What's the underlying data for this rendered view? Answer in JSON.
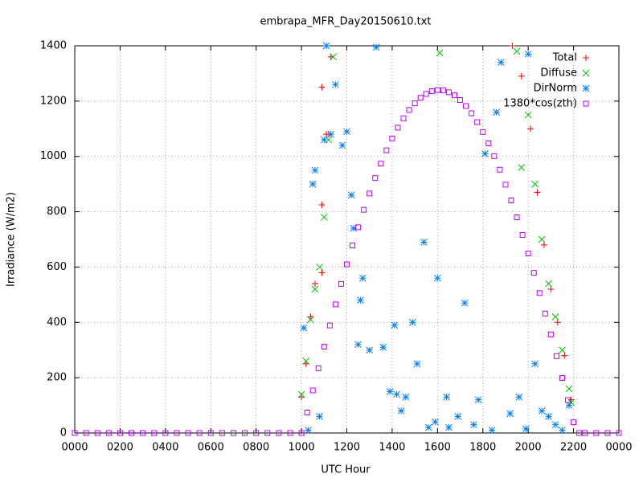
{
  "chart_data": {
    "type": "scatter",
    "title": "embrapa_MFR_Day20150610.txt",
    "x_label": "UTC Hour",
    "y_label": "Irradiance (W/m2)",
    "xlim": [
      0,
      24
    ],
    "ylim": [
      0,
      1400
    ],
    "xticks": [
      {
        "value": 0,
        "label": "0000"
      },
      {
        "value": 2,
        "label": "0200"
      },
      {
        "value": 4,
        "label": "0400"
      },
      {
        "value": 6,
        "label": "0600"
      },
      {
        "value": 8,
        "label": "0800"
      },
      {
        "value": 10,
        "label": "1000"
      },
      {
        "value": 12,
        "label": "1200"
      },
      {
        "value": 14,
        "label": "1400"
      },
      {
        "value": 16,
        "label": "1600"
      },
      {
        "value": 18,
        "label": "1800"
      },
      {
        "value": 20,
        "label": "2000"
      },
      {
        "value": 22,
        "label": "2200"
      },
      {
        "value": 24,
        "label": "0000"
      }
    ],
    "yticks": [
      0,
      200,
      400,
      600,
      800,
      1000,
      1200,
      1400
    ],
    "grid": true,
    "legend": "top-right",
    "series": [
      {
        "name": "Total",
        "color": "#ff0000",
        "marker": "plus",
        "x": [
          10.0,
          10.2,
          10.4,
          10.6,
          10.9,
          11.1,
          11.3,
          19.3,
          19.7,
          20.1,
          20.4,
          20.7,
          21.0,
          21.3,
          21.6,
          21.9,
          10.9,
          10.9,
          11.2
        ],
        "values": [
          130,
          250,
          420,
          540,
          580,
          1080,
          1360,
          1400,
          1290,
          1100,
          870,
          680,
          520,
          400,
          280,
          120,
          825,
          1250,
          1080
        ]
      },
      {
        "name": "Diffuse",
        "color": "#00c000",
        "marker": "cross",
        "x": [
          10.0,
          10.2,
          10.4,
          10.6,
          10.8,
          11.0,
          11.2,
          11.4,
          19.5,
          19.7,
          20.0,
          20.3,
          20.6,
          20.9,
          21.2,
          21.5,
          21.8,
          21.9,
          16.1
        ],
        "values": [
          140,
          260,
          410,
          520,
          600,
          780,
          1060,
          1360,
          1380,
          960,
          1150,
          900,
          700,
          540,
          420,
          300,
          160,
          110,
          1375
        ]
      },
      {
        "name": "DirNorm",
        "color": "#0080ff",
        "marker": "star",
        "x": [
          10.1,
          10.3,
          10.5,
          10.6,
          10.8,
          11.0,
          11.1,
          11.3,
          11.5,
          11.8,
          12.0,
          12.2,
          12.3,
          12.5,
          12.7,
          13.0,
          13.3,
          13.6,
          13.9,
          14.2,
          14.4,
          14.6,
          14.9,
          15.1,
          15.4,
          15.6,
          15.9,
          16.0,
          16.4,
          16.9,
          17.2,
          17.6,
          18.1,
          18.4,
          18.8,
          19.2,
          19.6,
          20.0,
          20.3,
          20.6,
          20.9,
          21.2,
          21.5,
          21.8,
          12.6,
          14.1,
          16.5,
          17.8,
          18.6,
          19.9
        ],
        "values": [
          380,
          10,
          900,
          950,
          60,
          1060,
          1400,
          1080,
          1260,
          1040,
          1090,
          860,
          740,
          320,
          560,
          300,
          1395,
          310,
          150,
          140,
          80,
          130,
          400,
          250,
          690,
          20,
          40,
          560,
          130,
          60,
          470,
          30,
          1010,
          10,
          1340,
          70,
          130,
          1370,
          250,
          80,
          60,
          30,
          10,
          100,
          480,
          390,
          20,
          120,
          1160,
          15
        ]
      },
      {
        "name": "1380*cos(zth)",
        "color": "#c000ff",
        "marker": "square",
        "x": [
          0,
          0.5,
          1,
          1.5,
          2,
          2.5,
          3,
          3.5,
          4,
          4.5,
          5,
          5.5,
          6,
          6.5,
          7,
          7.5,
          8,
          8.5,
          9,
          9.5,
          10.0,
          10.25,
          10.5,
          10.75,
          11.0,
          11.25,
          11.5,
          11.75,
          12.0,
          12.25,
          12.5,
          12.75,
          13.0,
          13.25,
          13.5,
          13.75,
          14.0,
          14.25,
          14.5,
          14.75,
          15.0,
          15.25,
          15.5,
          15.75,
          16.0,
          16.25,
          16.5,
          16.75,
          17.0,
          17.25,
          17.5,
          17.75,
          18.0,
          18.25,
          18.5,
          18.75,
          19.0,
          19.25,
          19.5,
          19.75,
          20.0,
          20.25,
          20.5,
          20.75,
          21.0,
          21.25,
          21.5,
          21.75,
          22.0,
          22.25,
          22.5,
          23,
          23.5,
          24
        ],
        "values": [
          0,
          0,
          0,
          0,
          0,
          0,
          0,
          0,
          0,
          0,
          0,
          0,
          0,
          0,
          0,
          0,
          0,
          0,
          0,
          0,
          0,
          74,
          154,
          234,
          312,
          389,
          465,
          539,
          610,
          678,
          744,
          807,
          866,
          922,
          974,
          1022,
          1065,
          1104,
          1138,
          1168,
          1192,
          1212,
          1226,
          1236,
          1240,
          1239,
          1232,
          1221,
          1204,
          1182,
          1156,
          1124,
          1088,
          1047,
          1001,
          952,
          898,
          841,
          780,
          716,
          649,
          579,
          506,
          432,
          356,
          278,
          199,
          119,
          39,
          0,
          0,
          0,
          0,
          0
        ]
      }
    ]
  }
}
